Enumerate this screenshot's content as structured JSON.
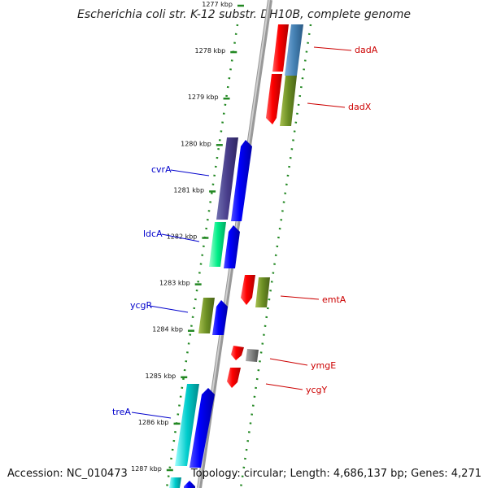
{
  "title": "Escherichia coli str. K-12 substr. DH10B, complete genome",
  "footer": {
    "accession": "Accession: NC_010473",
    "topology": "Topology: circular; Length: 4,686,137 bp; Genes: 4,271"
  },
  "ruler": {
    "ticks": [
      {
        "kbp": 1277,
        "label": "1277 kbp"
      },
      {
        "kbp": 1278,
        "label": "1278 kbp"
      },
      {
        "kbp": 1279,
        "label": "1279 kbp"
      },
      {
        "kbp": 1280,
        "label": "1280 kbp"
      },
      {
        "kbp": 1281,
        "label": "1281 kbp"
      },
      {
        "kbp": 1282,
        "label": "1282 kbp"
      },
      {
        "kbp": 1283,
        "label": "1283 kbp"
      },
      {
        "kbp": 1284,
        "label": "1284 kbp"
      },
      {
        "kbp": 1285,
        "label": "1285 kbp"
      },
      {
        "kbp": 1286,
        "label": "1286 kbp"
      },
      {
        "kbp": 1287,
        "label": "1287 kbp"
      }
    ]
  },
  "genes": [
    {
      "name": "dadA",
      "strand": "forward",
      "color": "#cc0000"
    },
    {
      "name": "dadX",
      "strand": "forward",
      "color": "#cc0000"
    },
    {
      "name": "cvrA",
      "strand": "reverse",
      "color": "#0000cc"
    },
    {
      "name": "ldcA",
      "strand": "reverse",
      "color": "#0000cc"
    },
    {
      "name": "emtA",
      "strand": "forward",
      "color": "#cc0000"
    },
    {
      "name": "ycgR",
      "strand": "reverse",
      "color": "#0000cc"
    },
    {
      "name": "ymgE",
      "strand": "forward",
      "color": "#cc0000"
    },
    {
      "name": "ycgY",
      "strand": "forward",
      "color": "#cc0000"
    },
    {
      "name": "treA",
      "strand": "reverse",
      "color": "#0000cc"
    }
  ],
  "colors": {
    "forward_cds": "#ff0000",
    "reverse_cds": "#0000ff",
    "backbone": "#888888",
    "tick": "#228822",
    "label_forward": "#cc0000",
    "label_reverse": "#0000cc"
  }
}
